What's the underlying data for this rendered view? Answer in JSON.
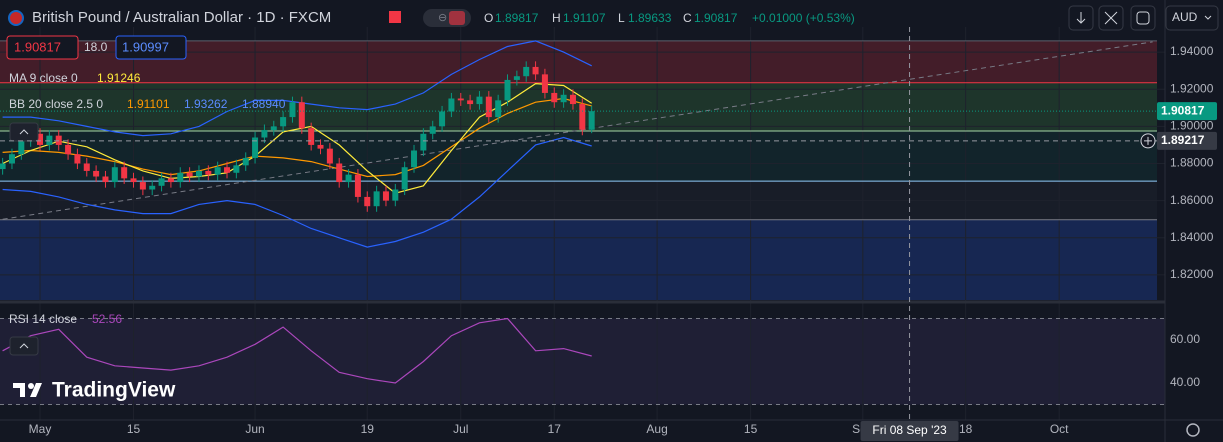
{
  "chart_data": {
    "type": "candlestick",
    "title": "British Pound / Australian Dollar · 1D · FXCM",
    "up_color": "#089981",
    "down_color": "#f23645",
    "xlim": [
      -0.28,
      124.32
    ],
    "ylim": [
      1.8065,
      1.9535
    ],
    "yticks": [
      {
        "value": 1.94,
        "label": "1.94000"
      },
      {
        "value": 1.92,
        "label": "1.92000"
      },
      {
        "value": 1.9,
        "label": "1.90000"
      },
      {
        "value": 1.88,
        "label": "1.88000"
      },
      {
        "value": 1.86,
        "label": "1.86000"
      },
      {
        "value": 1.84,
        "label": "1.84000"
      },
      {
        "value": 1.82,
        "label": "1.82000"
      }
    ],
    "xticks": [
      {
        "value": 4,
        "label": "May"
      },
      {
        "value": 14,
        "label": "15"
      },
      {
        "value": 27,
        "label": "Jun"
      },
      {
        "value": 39,
        "label": "19"
      },
      {
        "value": 49,
        "label": "Jul"
      },
      {
        "value": 59,
        "label": "17"
      },
      {
        "value": 70,
        "label": "Aug"
      },
      {
        "value": 80,
        "label": "15"
      },
      {
        "value": 92,
        "label": "Sep"
      },
      {
        "value": 103,
        "label": "18"
      },
      {
        "value": 113,
        "label": "Oct"
      }
    ],
    "grid": true,
    "open": [
      1.877,
      1.88,
      1.885,
      1.892,
      1.896,
      1.89,
      1.895,
      1.89,
      1.885,
      1.88,
      1.876,
      1.873,
      1.87,
      1.878,
      1.872,
      1.87,
      1.866,
      1.868,
      1.872,
      1.87,
      1.875,
      1.873,
      1.876,
      1.874,
      1.878,
      1.875,
      1.879,
      1.883,
      1.894,
      1.898,
      1.9,
      1.905,
      1.913,
      1.899,
      1.89,
      1.888,
      1.88,
      1.87,
      1.874,
      1.862,
      1.857,
      1.865,
      1.86,
      1.866,
      1.878,
      1.887,
      1.896,
      1.9,
      1.908,
      1.915,
      1.914,
      1.912,
      1.916,
      1.905,
      1.914,
      1.925,
      1.927,
      1.932,
      1.928,
      1.918,
      1.913,
      1.917,
      1.912,
      1.89817
    ],
    "high": [
      1.883,
      1.888,
      1.895,
      1.899,
      1.899,
      1.898,
      1.898,
      1.893,
      1.888,
      1.883,
      1.879,
      1.876,
      1.881,
      1.881,
      1.875,
      1.873,
      1.871,
      1.875,
      1.875,
      1.878,
      1.878,
      1.879,
      1.879,
      1.881,
      1.881,
      1.882,
      1.886,
      1.897,
      1.901,
      1.903,
      1.908,
      1.916,
      1.916,
      1.902,
      1.893,
      1.891,
      1.883,
      1.877,
      1.877,
      1.865,
      1.868,
      1.868,
      1.869,
      1.881,
      1.89,
      1.899,
      1.903,
      1.911,
      1.918,
      1.918,
      1.917,
      1.919,
      1.919,
      1.917,
      1.928,
      1.93,
      1.935,
      1.935,
      1.931,
      1.921,
      1.92,
      1.92,
      1.915,
      1.91107
    ],
    "low": [
      1.874,
      1.877,
      1.882,
      1.889,
      1.887,
      1.887,
      1.887,
      1.882,
      1.877,
      1.873,
      1.87,
      1.867,
      1.867,
      1.869,
      1.867,
      1.863,
      1.863,
      1.865,
      1.867,
      1.867,
      1.87,
      1.87,
      1.871,
      1.871,
      1.872,
      1.872,
      1.876,
      1.88,
      1.891,
      1.895,
      1.897,
      1.902,
      1.896,
      1.887,
      1.885,
      1.877,
      1.867,
      1.867,
      1.859,
      1.854,
      1.854,
      1.857,
      1.857,
      1.863,
      1.875,
      1.884,
      1.893,
      1.897,
      1.905,
      1.911,
      1.909,
      1.909,
      1.902,
      1.902,
      1.911,
      1.922,
      1.924,
      1.925,
      1.915,
      1.91,
      1.91,
      1.909,
      1.8952,
      1.89633
    ],
    "close": [
      1.88,
      1.885,
      1.892,
      1.896,
      1.89,
      1.895,
      1.89,
      1.885,
      1.88,
      1.876,
      1.873,
      1.87,
      1.878,
      1.872,
      1.87,
      1.866,
      1.868,
      1.872,
      1.87,
      1.875,
      1.873,
      1.876,
      1.874,
      1.878,
      1.875,
      1.879,
      1.883,
      1.894,
      1.898,
      1.9,
      1.905,
      1.913,
      1.899,
      1.89,
      1.888,
      1.88,
      1.87,
      1.874,
      1.862,
      1.857,
      1.865,
      1.86,
      1.866,
      1.878,
      1.887,
      1.896,
      1.9,
      1.908,
      1.915,
      1.914,
      1.912,
      1.916,
      1.905,
      1.914,
      1.925,
      1.927,
      1.932,
      1.928,
      1.918,
      1.913,
      1.917,
      1.912,
      1.8982,
      1.90817
    ],
    "overlays": [
      {
        "x": [
          0,
          3,
          6,
          9,
          12,
          15,
          18,
          21,
          24,
          27,
          30,
          33,
          36,
          39,
          42,
          45,
          48,
          51,
          54,
          57,
          60,
          63
        ],
        "values": [
          1.905,
          1.905,
          1.903,
          1.9,
          1.897,
          1.895,
          1.896,
          1.9,
          1.908,
          1.914,
          1.914,
          1.912,
          1.91,
          1.909,
          1.912,
          1.918,
          1.928,
          1.936,
          1.943,
          1.946,
          1.94,
          1.93262
        ],
        "color": "#2962ff"
      },
      {
        "x": [
          0,
          3,
          6,
          9,
          12,
          15,
          18,
          21,
          24,
          27,
          30,
          33,
          36,
          39,
          42,
          45,
          48,
          51,
          54,
          57,
          60,
          63
        ],
        "values": [
          1.866,
          1.865,
          1.862,
          1.858,
          1.855,
          1.853,
          1.853,
          1.858,
          1.86,
          1.858,
          1.852,
          1.845,
          1.84,
          1.835,
          1.838,
          1.843,
          1.85,
          1.862,
          1.876,
          1.89,
          1.894,
          1.8894
        ],
        "color": "#2962ff"
      },
      {
        "x": [
          0,
          3,
          6,
          9,
          12,
          15,
          18,
          21,
          24,
          27,
          30,
          33,
          36,
          39,
          42,
          45,
          48,
          51,
          54,
          57,
          60,
          63
        ],
        "values": [
          1.886,
          1.887,
          1.886,
          1.884,
          1.881,
          1.877,
          1.874,
          1.876,
          1.88,
          1.884,
          1.883,
          1.881,
          1.877,
          1.873,
          1.874,
          1.879,
          1.889,
          1.899,
          1.907,
          1.913,
          1.915,
          1.91101
        ],
        "color": "#ff9800"
      },
      {
        "x": [
          0,
          3,
          6,
          9,
          12,
          15,
          18,
          21,
          24,
          27,
          30,
          33,
          36,
          39,
          42,
          45,
          48,
          51,
          54,
          57,
          60,
          63
        ],
        "values": [
          1.88,
          1.887,
          1.892,
          1.889,
          1.882,
          1.876,
          1.872,
          1.873,
          1.875,
          1.884,
          1.897,
          1.9,
          1.89,
          1.876,
          1.864,
          1.868,
          1.887,
          1.905,
          1.913,
          1.923,
          1.922,
          1.91246
        ],
        "color": "#ffeb3b"
      }
    ],
    "levels": [
      {
        "value": 1.946,
        "line": "#5d606b",
        "fill": "rgba(242,54,69,0.22)"
      },
      {
        "value": 1.9235,
        "line": "#f23645",
        "fill": "rgba(76,175,80,0.20)"
      },
      {
        "value": 1.8975,
        "line": "#a5d6a7",
        "fill": "rgba(8,153,129,0.10)"
      },
      {
        "value": 1.8705,
        "line": "#90caf9",
        "fill": "rgba(30,34,45,0.55)"
      },
      {
        "value": 1.8497,
        "line": "#787b86",
        "fill": "rgba(41,98,255,0.22)"
      }
    ],
    "trendline": {
      "x": [
        0,
        123
      ],
      "values": [
        1.85,
        1.9455
      ],
      "color": "#787b86"
    },
    "crosshair": {
      "x": 97,
      "y": 1.89217,
      "date_label": "Fri 08 Sep '23"
    },
    "rsi": {
      "ylim": [
        22.8,
        76.3
      ],
      "yticks": [
        {
          "value": 60,
          "label": "60.00"
        },
        {
          "value": 40,
          "label": "40.00"
        }
      ],
      "levels": [
        70,
        30
      ],
      "color": "#ab47bc",
      "x": [
        0,
        3,
        6,
        9,
        12,
        15,
        18,
        21,
        24,
        27,
        30,
        33,
        36,
        39,
        42,
        45,
        48,
        51,
        54,
        57,
        60,
        63
      ],
      "values": [
        55,
        62,
        65,
        52,
        48,
        47,
        46,
        48,
        52,
        58,
        66,
        55,
        45,
        42,
        40,
        50,
        62,
        68,
        70,
        55,
        56,
        52.56
      ]
    }
  },
  "header": {
    "o": "O",
    "h": "H",
    "l": "L",
    "c": "C",
    "change": "+0.01000 (+0.53%)",
    "currency": "AUD"
  },
  "quote_boxes": {
    "sell": "1.90817",
    "spread": "18.0",
    "buy": "1.90997"
  },
  "indicators": {
    "ma": {
      "label": "MA 9 close 0",
      "value": "1.91246"
    },
    "bb": {
      "label": "BB 20 close 2.5 0",
      "basis": "1.91101",
      "upper": "1.93262",
      "lower": "1.88940"
    },
    "rsi": {
      "label": "RSI 14 close",
      "value": "52.56"
    }
  },
  "branding": "TradingView"
}
